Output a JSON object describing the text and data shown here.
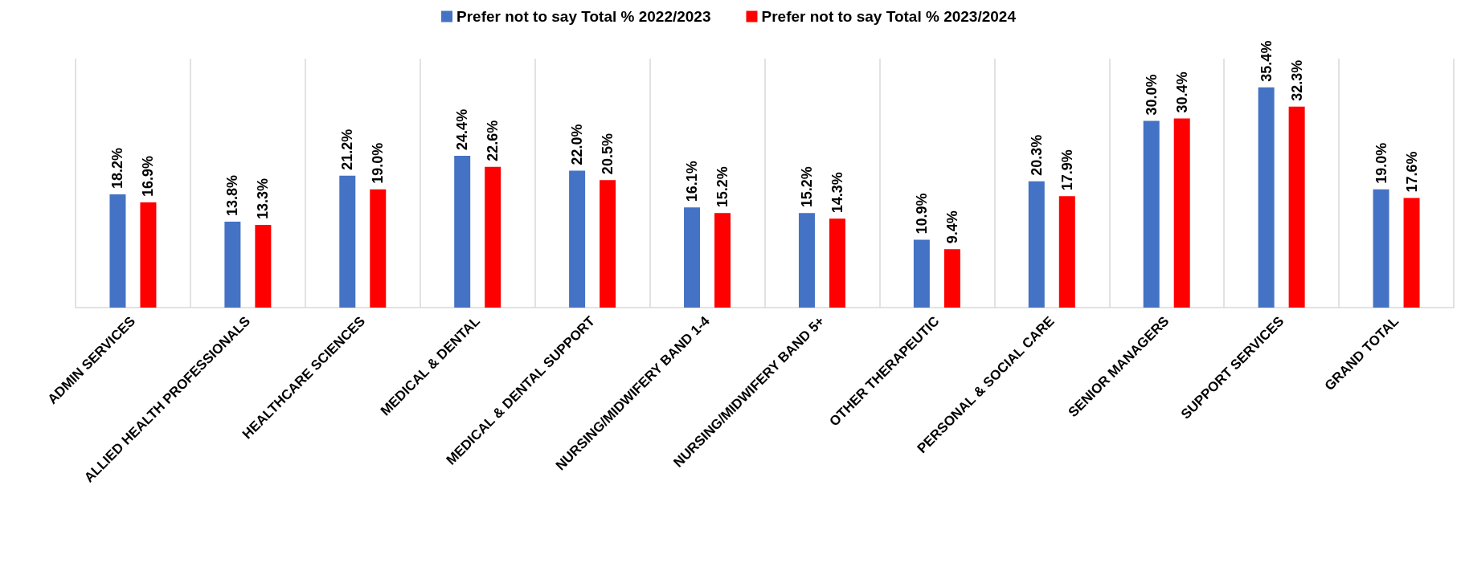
{
  "chart_data": {
    "type": "bar",
    "categories": [
      "ADMIN SERVICES",
      "ALLIED HEALTH PROFESSIONALS",
      "HEALTHCARE SCIENCES",
      "MEDICAL & DENTAL",
      "MEDICAL & DENTAL SUPPORT",
      "NURSING/MIDWIFERY BAND 1-4",
      "NURSING/MIDWIFERY BAND 5+",
      "OTHER THERAPEUTIC",
      "PERSONAL & SOCIAL CARE",
      "SENIOR MANAGERS",
      "SUPPORT SERVICES",
      "GRAND TOTAL"
    ],
    "series": [
      {
        "name": "Prefer not to say Total % 2022/2023",
        "color": "#4472c4",
        "values": [
          18.2,
          13.8,
          21.2,
          24.4,
          22.0,
          16.1,
          15.2,
          10.9,
          20.3,
          30.0,
          35.4,
          19.0
        ],
        "value_labels": [
          "18.2%",
          "13.8%",
          "21.2%",
          "24.4%",
          "22.0%",
          "16.1%",
          "15.2%",
          "10.9%",
          "20.3%",
          "30.0%",
          "35.4%",
          "19.0%"
        ]
      },
      {
        "name": "Prefer not to say Total % 2023/2024",
        "color": "#ff0000",
        "values": [
          16.9,
          13.3,
          19.0,
          22.6,
          20.5,
          15.2,
          14.3,
          9.4,
          17.9,
          30.4,
          32.3,
          17.6
        ],
        "value_labels": [
          "16.9%",
          "13.3%",
          "19.0%",
          "22.6%",
          "20.5%",
          "15.2%",
          "14.3%",
          "9.4%",
          "17.9%",
          "30.4%",
          "32.3%",
          "17.6%"
        ]
      }
    ],
    "grid": "x",
    "legend": "top",
    "tick_labels": "x"
  }
}
